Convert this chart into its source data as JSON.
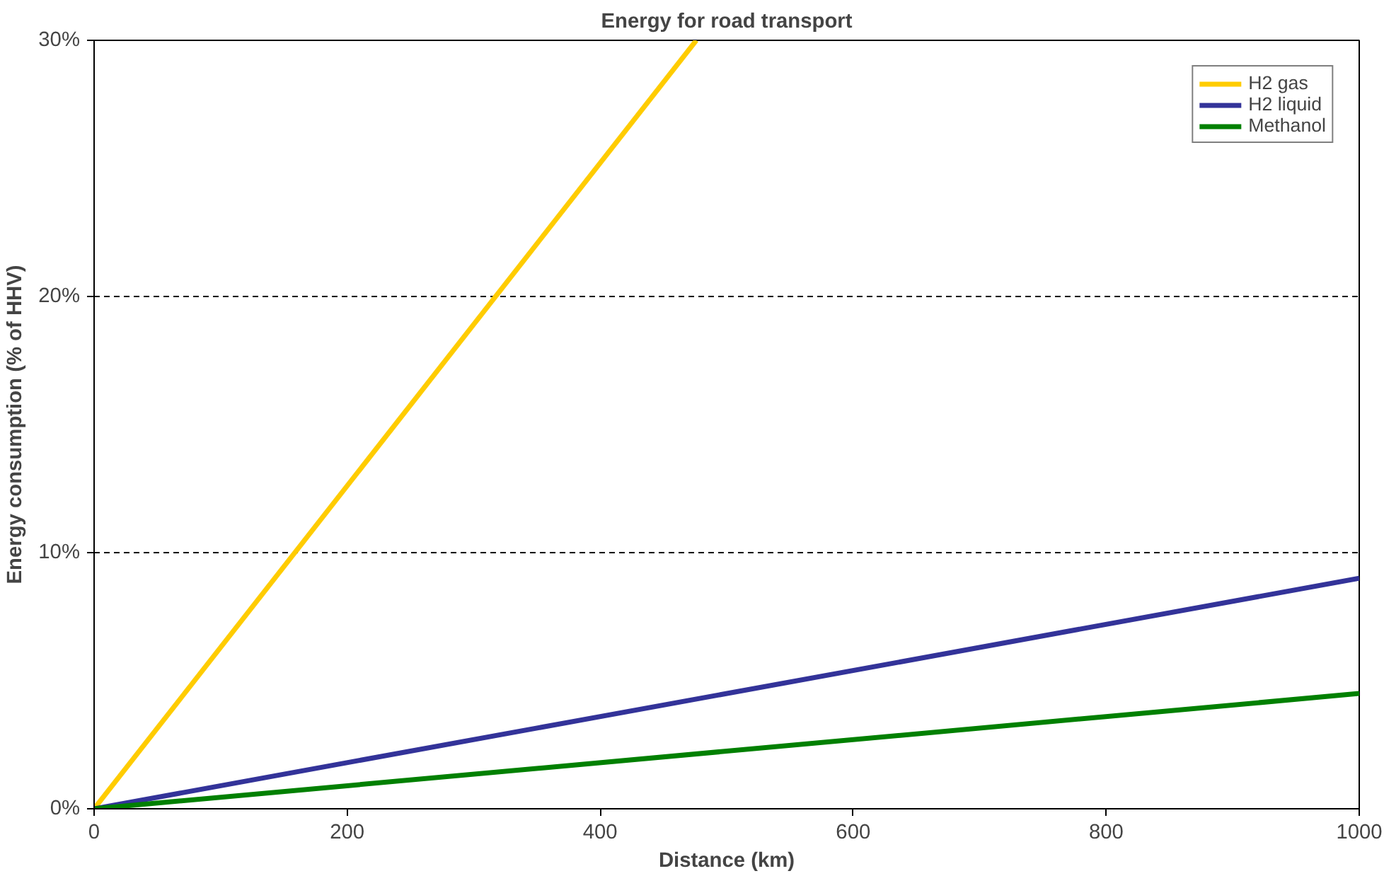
{
  "chart_data": {
    "type": "line",
    "title": "Energy for road transport",
    "xlabel": "Distance (km)",
    "ylabel": "Energy consumption (% of HHV)",
    "xlim": [
      0,
      1000
    ],
    "ylim": [
      0,
      30
    ],
    "xticks": [
      0,
      200,
      400,
      600,
      800,
      1000
    ],
    "yticks": [
      {
        "value": 0,
        "label": "0%"
      },
      {
        "value": 10,
        "label": "10%"
      },
      {
        "value": 20,
        "label": "20%"
      },
      {
        "value": 30,
        "label": "30%"
      }
    ],
    "grid": "y",
    "legend": "top right",
    "marker": "none",
    "line_style": "solid",
    "series": [
      {
        "name": "H2 gas",
        "color": "#ffcc00",
        "x": [
          0,
          476
        ],
        "values": [
          0,
          30
        ]
      },
      {
        "name": "H2 liquid",
        "color": "#333399",
        "x": [
          0,
          1000
        ],
        "values": [
          0,
          9.0
        ]
      },
      {
        "name": "Methanol",
        "color": "#008000",
        "x": [
          0,
          1000
        ],
        "values": [
          0,
          4.5
        ]
      }
    ]
  }
}
